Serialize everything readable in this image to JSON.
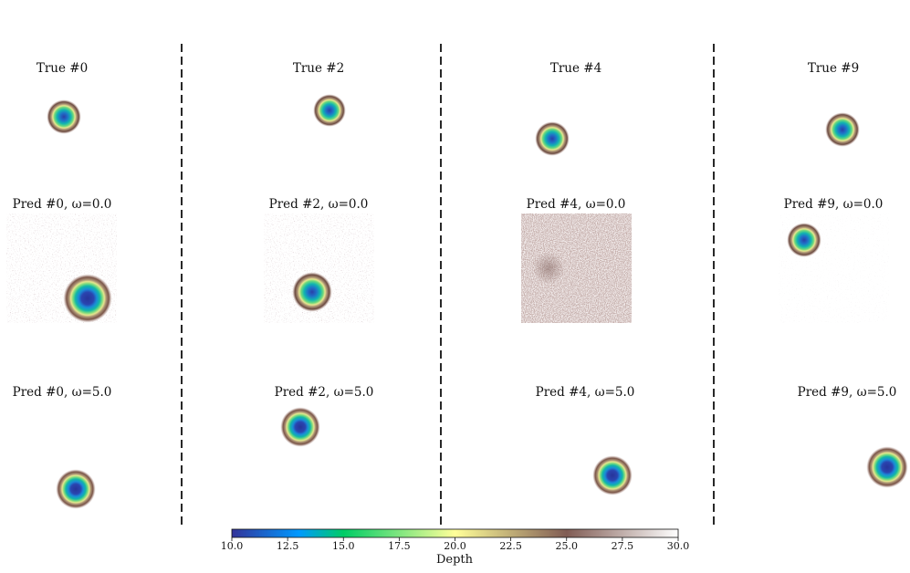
{
  "panels": {
    "c0": {
      "true": {
        "title": "True #0"
      },
      "pred0": {
        "title": "Pred #0, ω=0.0"
      },
      "pred5": {
        "title": "Pred #0, ω=5.0"
      }
    },
    "c1": {
      "true": {
        "title": "True #2"
      },
      "pred0": {
        "title": "Pred #2, ω=0.0"
      },
      "pred5": {
        "title": "Pred #2, ω=5.0"
      }
    },
    "c2": {
      "true": {
        "title": "True #4"
      },
      "pred0": {
        "title": "Pred #4, ω=0.0"
      },
      "pred5": {
        "title": "Pred #4, ω=5.0"
      }
    },
    "c3": {
      "true": {
        "title": "True #9"
      },
      "pred0": {
        "title": "Pred #9, ω=0.0"
      },
      "pred5": {
        "title": "Pred #9, ω=5.0"
      }
    }
  },
  "colorbar": {
    "label": "Depth",
    "ticks": [
      "10.0",
      "12.5",
      "15.0",
      "17.5",
      "20.0",
      "22.5",
      "25.0",
      "27.5",
      "30.0"
    ],
    "colormap": "terrain",
    "range": [
      10.0,
      30.0
    ]
  }
}
